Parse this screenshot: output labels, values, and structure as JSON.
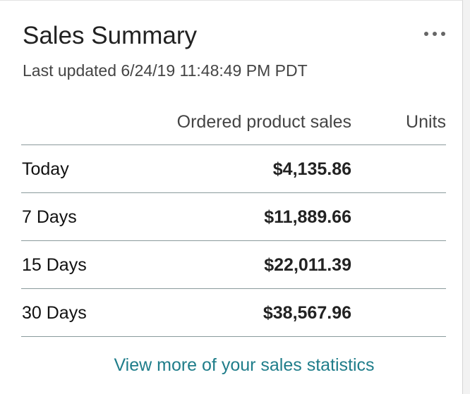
{
  "header": {
    "title": "Sales Summary",
    "subtitle": "Last updated 6/24/19 11:48:49 PM PDT"
  },
  "table": {
    "columns": [
      "Ordered product sales",
      "Units"
    ],
    "rows": [
      [
        "Today",
        "$4,135.86"
      ],
      [
        "7 Days",
        "$11,889.66"
      ],
      [
        "15 Days",
        "$22,011.39"
      ],
      [
        "30 Days",
        "$38,567.96"
      ]
    ]
  },
  "link": "View more of your sales statistics"
}
